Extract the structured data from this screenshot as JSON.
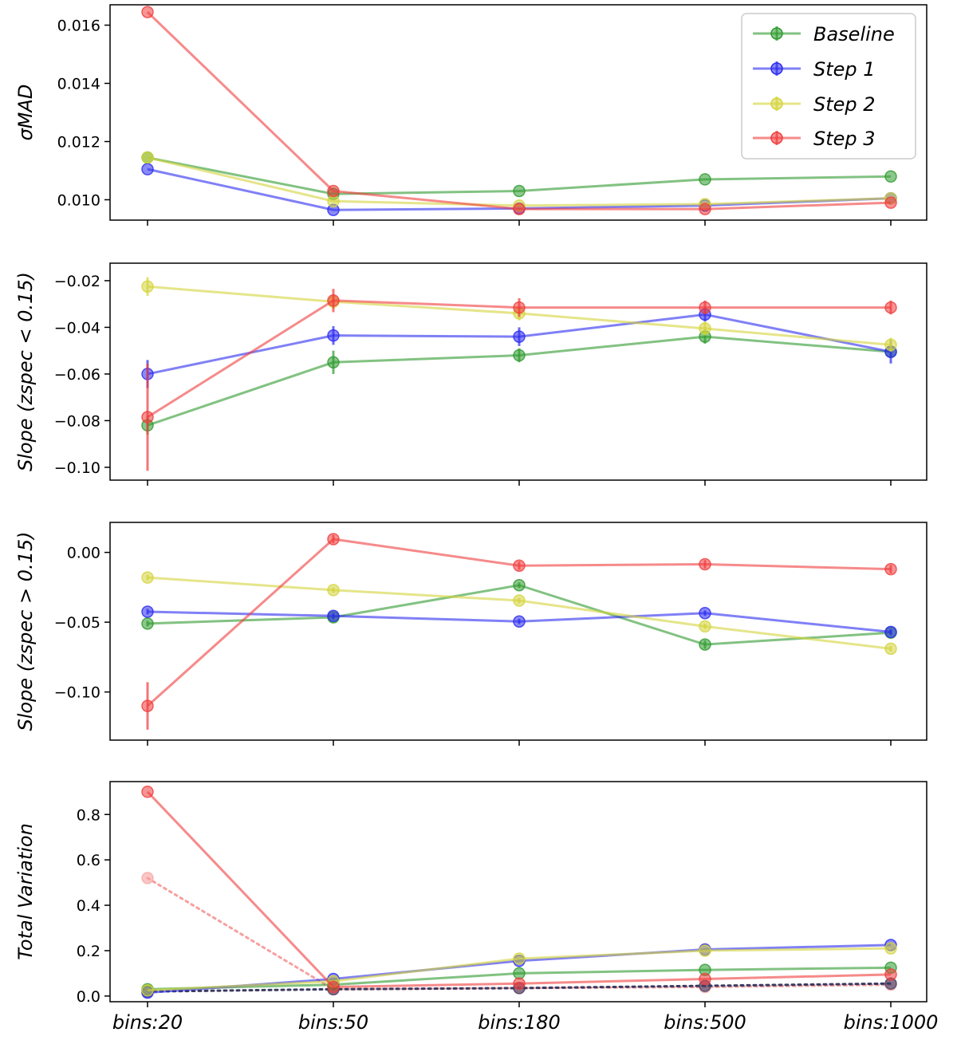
{
  "colors": {
    "Baseline": "#2e9a2e",
    "Step 1": "#2b2bf0",
    "Step 2": "#d4d43c",
    "Step 3": "#f03c3c",
    "dotted_step3": "#f6a0a0",
    "dotted_dark": "#3a3a60"
  },
  "legend": {
    "entries": [
      {
        "name": "Baseline",
        "text": "Baseline"
      },
      {
        "name": "Step 1",
        "text": "Step 1"
      },
      {
        "name": "Step 2",
        "text": "Step 2"
      },
      {
        "name": "Step 3",
        "text": "Step 3"
      }
    ]
  },
  "chart_data": [
    {
      "type": "line",
      "ylabel": "σMAD",
      "ylim": [
        0.0093,
        0.0167
      ],
      "yticks": [
        0.01,
        0.012,
        0.014,
        0.016
      ],
      "ytick_labels": [
        "0.010",
        "0.012",
        "0.014",
        "0.016"
      ],
      "categories": [
        "bins:20",
        "bins:50",
        "bins:180",
        "bins:500",
        "bins:1000"
      ],
      "legend_position": "top-right",
      "series": [
        {
          "name": "Baseline",
          "values": [
            0.01145,
            0.0102,
            0.0103,
            0.0107,
            0.0108
          ],
          "errors": [
            0,
            0,
            0,
            0,
            0
          ]
        },
        {
          "name": "Step 1",
          "values": [
            0.01105,
            0.00965,
            0.0097,
            0.0098,
            0.01005
          ],
          "errors": [
            0,
            0,
            0,
            0,
            0
          ]
        },
        {
          "name": "Step 2",
          "values": [
            0.01145,
            0.00995,
            0.0098,
            0.00985,
            0.01005
          ],
          "errors": [
            0,
            0,
            0,
            0,
            0
          ]
        },
        {
          "name": "Step 3",
          "values": [
            0.01645,
            0.0103,
            0.00968,
            0.00968,
            0.0099
          ],
          "errors": [
            0,
            0,
            0,
            0,
            0
          ]
        }
      ]
    },
    {
      "type": "line",
      "ylabel": "Slope (zspec < 0.15)",
      "ylim": [
        -0.1055,
        -0.0125
      ],
      "yticks": [
        -0.1,
        -0.08,
        -0.06,
        -0.04,
        -0.02
      ],
      "ytick_labels": [
        "−0.10",
        "−0.08",
        "−0.06",
        "−0.04",
        "−0.02"
      ],
      "categories": [
        "bins:20",
        "bins:50",
        "bins:180",
        "bins:500",
        "bins:1000"
      ],
      "series": [
        {
          "name": "Baseline",
          "values": [
            -0.082,
            -0.055,
            -0.052,
            -0.044,
            -0.0505
          ],
          "errors": [
            0.004,
            0.005,
            0.003,
            0.003,
            0.002
          ]
        },
        {
          "name": "Step 1",
          "values": [
            -0.06,
            -0.0435,
            -0.044,
            -0.0345,
            -0.0505
          ],
          "errors": [
            0.006,
            0.004,
            0.004,
            0.003,
            0.005
          ]
        },
        {
          "name": "Step 2",
          "values": [
            -0.0225,
            -0.029,
            -0.034,
            -0.0405,
            -0.0475
          ],
          "errors": [
            0.004,
            0.003,
            0.003,
            0.003,
            0.003
          ]
        },
        {
          "name": "Step 3",
          "values": [
            -0.0785,
            -0.0285,
            -0.0315,
            -0.0315,
            -0.0315
          ],
          "errors": [
            0.023,
            0.005,
            0.004,
            0.003,
            0.003
          ]
        }
      ]
    },
    {
      "type": "line",
      "ylabel": "Slope (zspec > 0.15)",
      "ylim": [
        -0.1345,
        0.0215
      ],
      "yticks": [
        -0.1,
        -0.05,
        0.0
      ],
      "ytick_labels": [
        "−0.10",
        "−0.05",
        "0.00"
      ],
      "categories": [
        "bins:20",
        "bins:50",
        "bins:180",
        "bins:500",
        "bins:1000"
      ],
      "series": [
        {
          "name": "Baseline",
          "values": [
            -0.051,
            -0.0465,
            -0.0235,
            -0.066,
            -0.0575
          ],
          "errors": [
            0.002,
            0.002,
            0.002,
            0.003,
            0.002
          ]
        },
        {
          "name": "Step 1",
          "values": [
            -0.0425,
            -0.0455,
            -0.0495,
            -0.0435,
            -0.057
          ],
          "errors": [
            0.002,
            0.002,
            0.002,
            0.002,
            0.002
          ]
        },
        {
          "name": "Step 2",
          "values": [
            -0.018,
            -0.027,
            -0.0345,
            -0.053,
            -0.069
          ],
          "errors": [
            0.002,
            0.002,
            0.002,
            0.002,
            0.002
          ]
        },
        {
          "name": "Step 3",
          "values": [
            -0.11,
            0.0095,
            -0.0095,
            -0.0085,
            -0.012
          ],
          "errors": [
            0.017,
            0.003,
            0.003,
            0.003,
            0.003
          ]
        }
      ]
    },
    {
      "type": "line",
      "ylabel": "Total Variation",
      "ylim": [
        -0.025,
        0.945
      ],
      "yticks": [
        0.0,
        0.2,
        0.4,
        0.6,
        0.8
      ],
      "ytick_labels": [
        "0.0",
        "0.2",
        "0.4",
        "0.6",
        "0.8"
      ],
      "categories": [
        "bins:20",
        "bins:50",
        "bins:180",
        "bins:500",
        "bins:1000"
      ],
      "series": [
        {
          "name": "Baseline",
          "values": [
            0.03,
            0.05,
            0.1,
            0.115,
            0.125
          ],
          "errors": [
            0,
            0,
            0,
            0,
            0
          ]
        },
        {
          "name": "Step 1",
          "values": [
            0.015,
            0.075,
            0.155,
            0.205,
            0.225
          ],
          "errors": [
            0,
            0,
            0,
            0,
            0
          ]
        },
        {
          "name": "Step 2",
          "values": [
            0.025,
            0.065,
            0.165,
            0.2,
            0.21
          ],
          "errors": [
            0,
            0,
            0,
            0,
            0
          ]
        },
        {
          "name": "Step 3",
          "values": [
            0.9,
            0.04,
            0.055,
            0.075,
            0.095
          ],
          "errors": [
            0,
            0,
            0,
            0,
            0
          ]
        }
      ],
      "dotted_series": [
        {
          "color_key": "dotted_step3",
          "values": [
            0.52,
            0.03,
            0.035,
            0.04,
            0.05
          ]
        },
        {
          "color_key": "dotted_dark",
          "values": [
            0.02,
            0.03,
            0.035,
            0.045,
            0.055
          ]
        }
      ]
    }
  ]
}
